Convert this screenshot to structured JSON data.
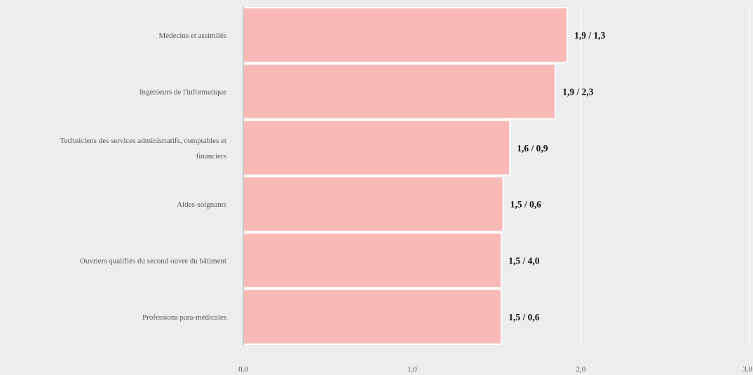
{
  "chart_data": {
    "type": "bar",
    "orientation": "horizontal",
    "categories": [
      "Médecins et assimilés",
      "Ingénieurs de l'informatique",
      "Techniciens des services administratifs, comptables et financiers",
      "Aides-soignants",
      "Ouvriers qualifiés du second ouvre du bâtiment",
      "Professions para-médicales"
    ],
    "category_lines": [
      [
        "Médecins et assimilés"
      ],
      [
        "Ingénieurs de l'informatique"
      ],
      [
        "Techniciens des services administratifs, comptables et",
        "financiers"
      ],
      [
        "Aides-soignants"
      ],
      [
        "Ouvriers qualifiés du second ouvre du bâtiment"
      ],
      [
        "Professions para-médicales"
      ]
    ],
    "values": [
      1.92,
      1.85,
      1.58,
      1.54,
      1.53,
      1.53
    ],
    "data_labels": [
      "1,9 / 1,3",
      "1,9 / 2,3",
      "1,6 / 0,9",
      "1,5 / 0,6",
      "1,5 / 4,0",
      "1,5 / 0,6"
    ],
    "xlim": [
      0,
      3
    ],
    "ticks": [
      0,
      1,
      2,
      3
    ],
    "tick_labels": [
      "0,0",
      "1,0",
      "2,0",
      "3,0"
    ],
    "grid": true,
    "colors": {
      "bar": "#f8b9b7",
      "bar_stroke": "#ffffff",
      "background": "#ecedef",
      "grid": "#ffffff",
      "axis": "#c8c8c8"
    }
  }
}
